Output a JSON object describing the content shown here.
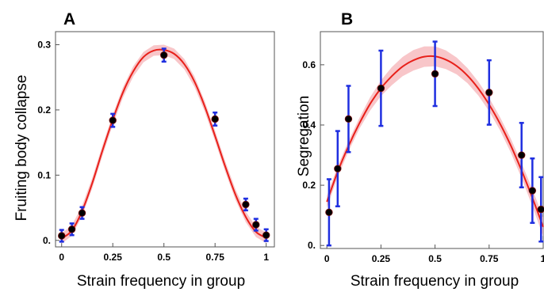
{
  "colors": {
    "fit_line": "#e8201a",
    "fit_band": "#f6b8bb",
    "error_bar": "#1f2fe0",
    "point": "#000000",
    "point_outline": "#7a1010"
  },
  "chart_data": [
    {
      "type": "scatter",
      "panel_label": "A",
      "xlabel": "Strain frequency in group",
      "ylabel": "Fruiting body collapse",
      "xlim": [
        -0.03,
        1.04
      ],
      "ylim": [
        -0.01,
        0.32
      ],
      "x_ticks": [
        0,
        0.25,
        0.5,
        0.75,
        1
      ],
      "x_tick_labels": [
        "0",
        "0.25",
        "0.5",
        "0.75",
        "1"
      ],
      "y_ticks": [
        0,
        0.1,
        0.2,
        0.3
      ],
      "y_tick_labels": [
        "0.",
        "0.1",
        "0.2",
        "0.3"
      ],
      "grid": false,
      "points": [
        {
          "x": 0.0,
          "y": 0.007,
          "err": 0.009
        },
        {
          "x": 0.05,
          "y": 0.017,
          "err": 0.009
        },
        {
          "x": 0.1,
          "y": 0.042,
          "err": 0.009
        },
        {
          "x": 0.25,
          "y": 0.184,
          "err": 0.01
        },
        {
          "x": 0.5,
          "y": 0.284,
          "err": 0.01
        },
        {
          "x": 0.75,
          "y": 0.186,
          "err": 0.01
        },
        {
          "x": 0.9,
          "y": 0.055,
          "err": 0.009
        },
        {
          "x": 0.95,
          "y": 0.024,
          "err": 0.009
        },
        {
          "x": 1.0,
          "y": 0.008,
          "err": 0.009
        }
      ],
      "fit": {
        "x": [
          0,
          0.05,
          0.1,
          0.15,
          0.2,
          0.25,
          0.3,
          0.35,
          0.4,
          0.45,
          0.5,
          0.55,
          0.6,
          0.65,
          0.7,
          0.75,
          0.8,
          0.85,
          0.9,
          0.95,
          1.0
        ],
        "y": [
          0.003,
          0.015,
          0.045,
          0.088,
          0.138,
          0.185,
          0.227,
          0.259,
          0.281,
          0.291,
          0.292,
          0.286,
          0.27,
          0.243,
          0.205,
          0.16,
          0.113,
          0.07,
          0.036,
          0.013,
          0.004
        ],
        "band_halfwidth": 0.008
      }
    },
    {
      "type": "scatter",
      "panel_label": "B",
      "xlabel": "Strain frequency in group",
      "ylabel": "Segregation",
      "xlim": [
        -0.03,
        1.0
      ],
      "ylim": [
        -0.01,
        0.71
      ],
      "x_ticks": [
        0,
        0.25,
        0.5,
        0.75,
        1
      ],
      "x_tick_labels": [
        "0",
        "0.25",
        "0.5",
        "0.75",
        "1"
      ],
      "y_ticks": [
        0,
        0.2,
        0.4,
        0.6
      ],
      "y_tick_labels": [
        "0.",
        "0.2",
        "0.4",
        "0.6"
      ],
      "grid": false,
      "points": [
        {
          "x": 0.01,
          "y": 0.11,
          "err": 0.11
        },
        {
          "x": 0.05,
          "y": 0.255,
          "err": 0.125
        },
        {
          "x": 0.1,
          "y": 0.42,
          "err": 0.11
        },
        {
          "x": 0.25,
          "y": 0.522,
          "err": 0.125
        },
        {
          "x": 0.5,
          "y": 0.57,
          "err": 0.107
        },
        {
          "x": 0.75,
          "y": 0.508,
          "err": 0.107
        },
        {
          "x": 0.9,
          "y": 0.3,
          "err": 0.107
        },
        {
          "x": 0.95,
          "y": 0.182,
          "err": 0.107
        },
        {
          "x": 0.99,
          "y": 0.12,
          "err": 0.107
        }
      ],
      "fit": {
        "x": [
          0,
          0.05,
          0.1,
          0.15,
          0.2,
          0.25,
          0.3,
          0.35,
          0.4,
          0.45,
          0.5,
          0.55,
          0.6,
          0.65,
          0.7,
          0.75,
          0.8,
          0.85,
          0.9,
          0.95,
          1.0
        ],
        "y": [
          0.145,
          0.245,
          0.33,
          0.405,
          0.47,
          0.522,
          0.562,
          0.594,
          0.615,
          0.627,
          0.628,
          0.617,
          0.596,
          0.564,
          0.521,
          0.468,
          0.405,
          0.332,
          0.249,
          0.158,
          0.062
        ],
        "band_halfwidth": [
          0.02,
          0.018,
          0.017,
          0.018,
          0.022,
          0.026,
          0.03,
          0.032,
          0.034,
          0.034,
          0.033,
          0.031,
          0.028,
          0.025,
          0.023,
          0.022,
          0.022,
          0.023,
          0.025,
          0.028,
          0.032
        ]
      }
    }
  ]
}
